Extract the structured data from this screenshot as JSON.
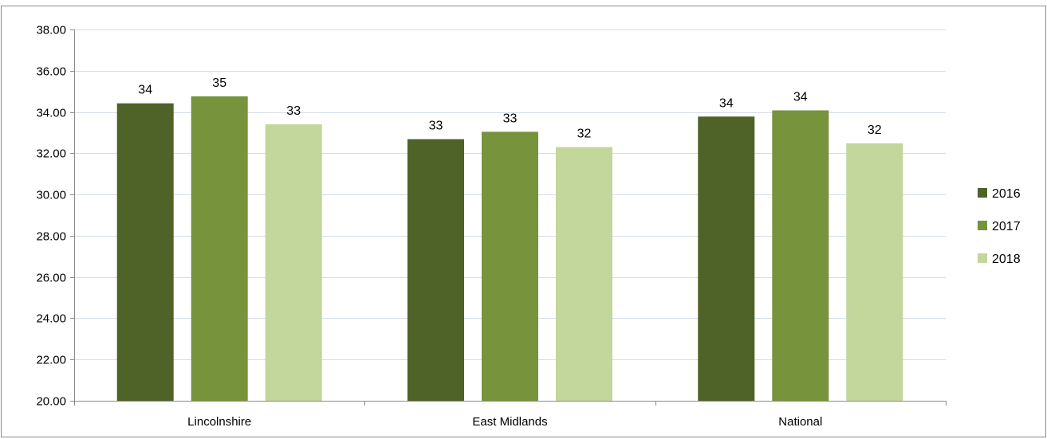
{
  "chart_data": {
    "type": "bar",
    "categories": [
      "Lincolnshire",
      "East Midlands",
      "National"
    ],
    "series": [
      {
        "name": "2016",
        "color": "#4f6228",
        "values": [
          34.42,
          32.68,
          33.78
        ],
        "labels": [
          "34",
          "33",
          "34"
        ]
      },
      {
        "name": "2017",
        "color": "#77933c",
        "values": [
          34.76,
          33.04,
          34.08
        ],
        "labels": [
          "35",
          "33",
          "34"
        ]
      },
      {
        "name": "2018",
        "color": "#c3d69b",
        "values": [
          33.4,
          32.3,
          32.48
        ],
        "labels": [
          "33",
          "32",
          "32"
        ]
      }
    ],
    "title": "",
    "xlabel": "",
    "ylabel": "",
    "ylim": [
      20,
      38
    ],
    "ytick_step": 2,
    "ytick_labels": [
      "20.00",
      "22.00",
      "24.00",
      "26.00",
      "28.00",
      "30.00",
      "32.00",
      "34.00",
      "36.00",
      "38.00"
    ],
    "grid": true,
    "legend_position": "right"
  }
}
